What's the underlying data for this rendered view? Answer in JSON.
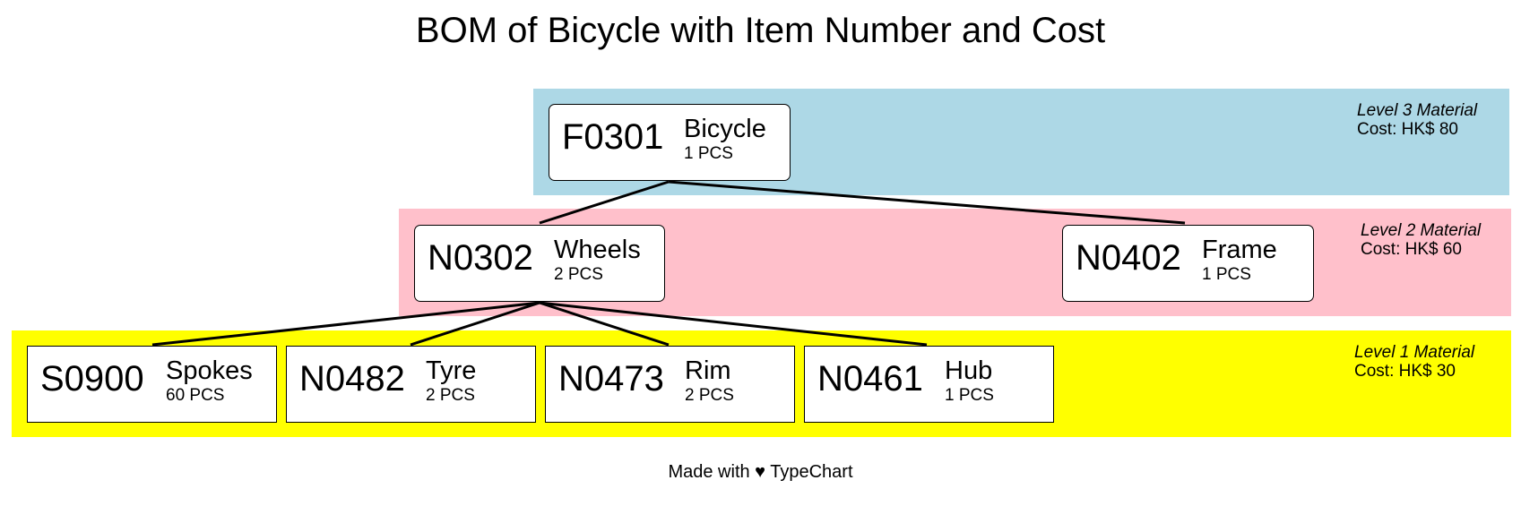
{
  "title": "BOM of Bicycle with Item Number and Cost",
  "levels": [
    {
      "id": "level3",
      "label": "Level 3 Material",
      "cost": "Cost: HK$ 80",
      "color": "#add8e6"
    },
    {
      "id": "level2",
      "label": "Level 2 Material",
      "cost": "Cost: HK$ 60",
      "color": "#ffc0cb"
    },
    {
      "id": "level1",
      "label": "Level 1 Material",
      "cost": "Cost: HK$ 30",
      "color": "#ffff00"
    }
  ],
  "nodes": [
    {
      "id": "F0301",
      "code": "F0301",
      "name": "Bicycle",
      "qty": "1 PCS",
      "level": 3
    },
    {
      "id": "N0302",
      "code": "N0302",
      "name": "Wheels",
      "qty": "2 PCS",
      "level": 2,
      "parent": "F0301"
    },
    {
      "id": "N0402",
      "code": "N0402",
      "name": "Frame",
      "qty": "1 PCS",
      "level": 2,
      "parent": "F0301"
    },
    {
      "id": "S0900",
      "code": "S0900",
      "name": "Spokes",
      "qty": "60 PCS",
      "level": 1,
      "parent": "N0302"
    },
    {
      "id": "N0482",
      "code": "N0482",
      "name": "Tyre",
      "qty": "2 PCS",
      "level": 1,
      "parent": "N0302"
    },
    {
      "id": "N0473",
      "code": "N0473",
      "name": "Rim",
      "qty": "2 PCS",
      "level": 1,
      "parent": "N0302"
    },
    {
      "id": "N0461",
      "code": "N0461",
      "name": "Hub",
      "qty": "1 PCS",
      "level": 1,
      "parent": "N0302"
    }
  ],
  "footer": "Made with ♥ TypeChart"
}
